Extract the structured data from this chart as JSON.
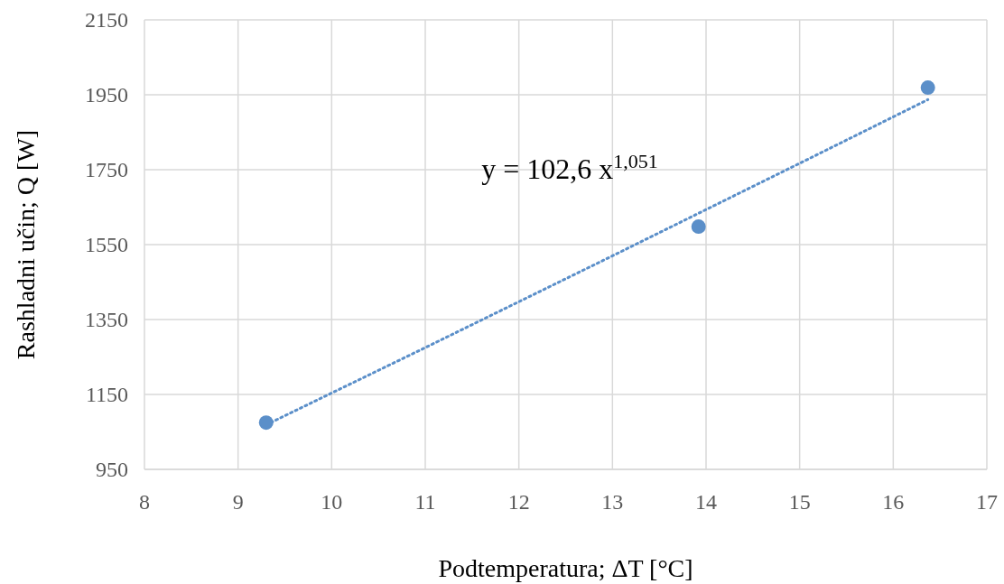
{
  "chart_data": {
    "type": "scatter",
    "xlabel": "Podtemperatura; ΔT [°C]",
    "ylabel": "Rashladni učin; Q  [W]",
    "xlim": [
      8,
      17
    ],
    "xticks": [
      8,
      9,
      10,
      11,
      12,
      13,
      14,
      15,
      16,
      17
    ],
    "ylim": [
      950,
      2150
    ],
    "yticks": [
      950,
      1150,
      1350,
      1550,
      1750,
      1950,
      2150
    ],
    "grid": true,
    "annotations": [
      "y = 102,6 x$^{1,051}$"
    ],
    "series": [
      {
        "color": "#5b8fc9",
        "marker": "circle",
        "x": [
          9.3,
          13.92,
          16.37
        ],
        "values": [
          1075,
          1598,
          1969
        ]
      },
      {
        "type": "line",
        "color": "#5b8fc9",
        "marker": "none",
        "line_style": "dotted",
        "x": [
          9.3,
          11,
          13,
          15,
          16.37
        ],
        "values": [
          1069,
          1275,
          1520,
          1767,
          1937
        ]
      }
    ]
  }
}
